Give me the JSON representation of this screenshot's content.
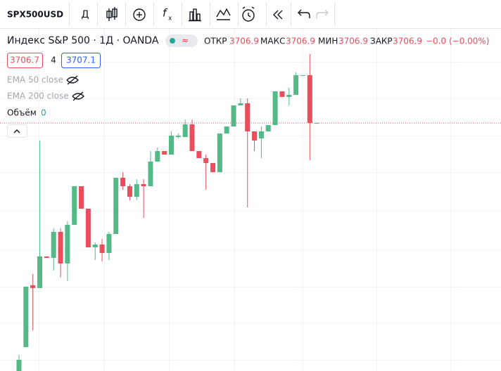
{
  "toolbar": {
    "symbol": "SPX500USD",
    "interval": "Д"
  },
  "legend": {
    "title": "Индекс S&P 500 · 1Д · OANDA",
    "open_label": "ОТКР",
    "high_label": "МАКС",
    "low_label": "МИН",
    "close_label": "ЗАКР",
    "change": "−0.0 (−0.00%)",
    "bid": 3706.7,
    "spread": 4,
    "ask": 3707.1,
    "indicators": [
      "EMA 50 close",
      "EMA 200 close"
    ],
    "volume_label": "Объём",
    "volume_value": 0
  },
  "chart_data": {
    "type": "candlestick",
    "up_color": "#53b987",
    "down_color": "#eb4d5c",
    "candles": [
      [
        3269.2,
        3297.7,
        3269.2,
        3289.0
      ],
      [
        3311.3,
        3418.0,
        3311.3,
        3418.0
      ],
      [
        3420.5,
        3440.3,
        3341.1,
        3415.5
      ],
      [
        3415.5,
        3675.9,
        3415.5,
        3471.3
      ],
      [
        3471.3,
        3471.3,
        3468.8,
        3468.8
      ],
      [
        3468.8,
        3520.9,
        3446.5,
        3514.7
      ],
      [
        3514.7,
        3520.9,
        3434.1,
        3458.9
      ],
      [
        3458.9,
        3533.3,
        3427.9,
        3527.1
      ],
      [
        3527.1,
        3595.3,
        3527.1,
        3595.3
      ],
      [
        3595.3,
        3595.3,
        3555.6,
        3555.6
      ],
      [
        3555.6,
        3555.6,
        3487.4,
        3487.4
      ],
      [
        3487.4,
        3496.1,
        3465.1,
        3492.4
      ],
      [
        3492.4,
        3502.3,
        3462.6,
        3477.5
      ],
      [
        3477.5,
        3514.7,
        3465.1,
        3511.0
      ],
      [
        3511.0,
        3610.2,
        3511.0,
        3610.2
      ],
      [
        3610.2,
        3620.1,
        3589.1,
        3595.3
      ],
      [
        3595.3,
        3599.0,
        3570.5,
        3576.7
      ],
      [
        3576.7,
        3607.7,
        3570.5,
        3599.0
      ],
      [
        3599.0,
        3607.7,
        3539.5,
        3595.3
      ],
      [
        3595.3,
        3657.3,
        3595.3,
        3638.7
      ],
      [
        3638.7,
        3663.5,
        3638.7,
        3657.3
      ],
      [
        3657.3,
        3657.3,
        3651.1,
        3651.1
      ],
      [
        3651.1,
        3692.0,
        3651.1,
        3684.6
      ],
      [
        3682.1,
        3688.3,
        3679.6,
        3684.6
      ],
      [
        3682.1,
        3713.1,
        3682.1,
        3704.4
      ],
      [
        3704.4,
        3713.1,
        3657.3,
        3657.3
      ],
      [
        3657.3,
        3657.3,
        3644.9,
        3644.9
      ],
      [
        3644.9,
        3651.1,
        3589.1,
        3636.2
      ],
      [
        3636.2,
        3636.2,
        3620.1,
        3620.1
      ],
      [
        3620.1,
        3688.3,
        3620.1,
        3688.3
      ],
      [
        3688.3,
        3700.7,
        3688.3,
        3700.7
      ],
      [
        3700.7,
        3737.9,
        3700.7,
        3737.9
      ],
      [
        3737.9,
        3750.3,
        3737.9,
        3741.6
      ],
      [
        3741.6,
        3750.3,
        3558.1,
        3692.0
      ],
      [
        3692.0,
        3692.0,
        3657.3,
        3675.9
      ],
      [
        3679.6,
        3700.7,
        3644.9,
        3692.0
      ],
      [
        3692.0,
        3703.2,
        3692.0,
        3703.2
      ],
      [
        3703.2,
        3762.7,
        3703.2,
        3762.7
      ],
      [
        3762.7,
        3762.7,
        3752.8,
        3752.8
      ],
      [
        3752.8,
        3768.9,
        3737.9,
        3756.5
      ],
      [
        3756.5,
        3796.2,
        3756.5,
        3791.2
      ],
      [
        3791.2,
        3791.2,
        3791.2,
        3791.2
      ],
      [
        3791.2,
        3828.4,
        3641.2,
        3706.9
      ],
      [
        3706.9,
        3706.9,
        3706.9,
        3706.9
      ]
    ]
  }
}
